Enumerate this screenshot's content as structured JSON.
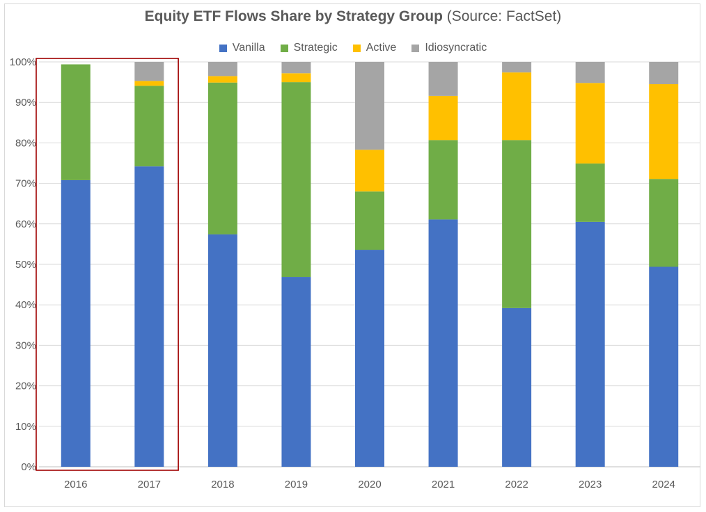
{
  "title": {
    "main": "Equity ETF Flows Share by Strategy Group",
    "sub": "(Source: FactSet)"
  },
  "chart_data": {
    "type": "bar",
    "stacked": true,
    "title": "Equity ETF Flows Share by Strategy Group (Source: FactSet)",
    "xlabel": "",
    "ylabel": "",
    "ylim": [
      0,
      100
    ],
    "y_ticks": [
      "0%",
      "10%",
      "20%",
      "30%",
      "40%",
      "50%",
      "60%",
      "70%",
      "80%",
      "90%",
      "100%"
    ],
    "grid": true,
    "legend_position": "top",
    "categories": [
      "2016",
      "2017",
      "2018",
      "2019",
      "2020",
      "2021",
      "2022",
      "2023",
      "2024"
    ],
    "series": [
      {
        "name": "Vanilla",
        "color": "#4472c4",
        "values": [
          70.8,
          74.2,
          57.4,
          46.9,
          53.6,
          61.1,
          39.2,
          60.5,
          49.4
        ]
      },
      {
        "name": "Strategic",
        "color": "#70ad47",
        "values": [
          28.6,
          19.9,
          37.5,
          48.1,
          14.4,
          19.6,
          41.5,
          14.4,
          21.7
        ]
      },
      {
        "name": "Active",
        "color": "#ffc000",
        "values": [
          0.0,
          1.2,
          1.6,
          2.2,
          10.3,
          10.9,
          16.7,
          19.9,
          23.4
        ]
      },
      {
        "name": "Idiosyncratic",
        "color": "#a5a5a5",
        "values": [
          0.0,
          4.7,
          3.5,
          2.8,
          21.7,
          8.4,
          2.6,
          5.2,
          5.5
        ]
      }
    ],
    "annotation": {
      "type": "highlight-box",
      "categories": [
        "2016",
        "2017"
      ],
      "color": "#a00000"
    }
  }
}
